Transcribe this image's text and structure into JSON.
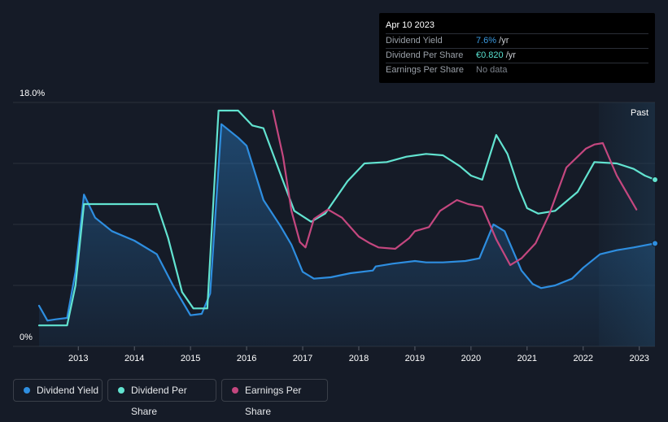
{
  "tooltip": {
    "date": "Apr 10 2023",
    "rows": [
      {
        "label": "Dividend Yield",
        "value": "7.6%",
        "unit": " /yr",
        "color": "#3b9ae1"
      },
      {
        "label": "Dividend Per Share",
        "value": "€0.820",
        "unit": " /yr",
        "color": "#59e1d0"
      },
      {
        "label": "Earnings Per Share",
        "value": "No data",
        "unit": "",
        "color": "#7c828b"
      }
    ]
  },
  "past_label": "Past",
  "legend": [
    {
      "label": "Dividend Yield",
      "color": "#2e8ee0"
    },
    {
      "label": "Dividend Per Share",
      "color": "#62e3d0"
    },
    {
      "label": "Earnings Per Share",
      "color": "#c4477f"
    }
  ],
  "chart_data": {
    "type": "line",
    "title": "",
    "xlabel": "",
    "ylabel": "",
    "ylim": [
      0,
      18
    ],
    "y_tick_labels": [
      "18.0%",
      "0%"
    ],
    "x_range": [
      2012.3,
      2023.28
    ],
    "x_ticks": [
      2013,
      2014,
      2015,
      2016,
      2017,
      2018,
      2019,
      2020,
      2021,
      2022,
      2023
    ],
    "forecast_region_start": 2022.28,
    "series": [
      {
        "name": "Dividend Yield",
        "color": "#2e8ee0",
        "area": true,
        "points": [
          [
            2012.3,
            3.0
          ],
          [
            2012.45,
            1.9
          ],
          [
            2012.6,
            2.0
          ],
          [
            2012.8,
            2.1
          ],
          [
            2012.95,
            5.5
          ],
          [
            2013.1,
            11.2
          ],
          [
            2013.3,
            9.5
          ],
          [
            2013.6,
            8.5
          ],
          [
            2014.0,
            7.8
          ],
          [
            2014.4,
            6.8
          ],
          [
            2014.7,
            4.4
          ],
          [
            2015.0,
            2.3
          ],
          [
            2015.2,
            2.4
          ],
          [
            2015.35,
            3.9
          ],
          [
            2015.55,
            16.4
          ],
          [
            2015.85,
            15.4
          ],
          [
            2016.0,
            14.8
          ],
          [
            2016.3,
            10.8
          ],
          [
            2016.6,
            8.9
          ],
          [
            2016.8,
            7.5
          ],
          [
            2017.0,
            5.5
          ],
          [
            2017.2,
            5.0
          ],
          [
            2017.5,
            5.1
          ],
          [
            2017.85,
            5.4
          ],
          [
            2018.25,
            5.6
          ],
          [
            2018.3,
            5.9
          ],
          [
            2018.6,
            6.1
          ],
          [
            2019.0,
            6.3
          ],
          [
            2019.2,
            6.2
          ],
          [
            2019.5,
            6.2
          ],
          [
            2019.9,
            6.3
          ],
          [
            2020.15,
            6.5
          ],
          [
            2020.4,
            9.0
          ],
          [
            2020.6,
            8.5
          ],
          [
            2020.9,
            5.6
          ],
          [
            2021.1,
            4.6
          ],
          [
            2021.25,
            4.3
          ],
          [
            2021.5,
            4.5
          ],
          [
            2021.8,
            5.0
          ],
          [
            2022.0,
            5.8
          ],
          [
            2022.3,
            6.8
          ],
          [
            2022.6,
            7.1
          ],
          [
            2022.9,
            7.3
          ],
          [
            2023.28,
            7.6
          ]
        ]
      },
      {
        "name": "Dividend Per Share",
        "color": "#62e3d0",
        "area": false,
        "points": [
          [
            2012.3,
            1.55
          ],
          [
            2012.8,
            1.55
          ],
          [
            2012.95,
            4.5
          ],
          [
            2013.1,
            10.5
          ],
          [
            2013.5,
            10.5
          ],
          [
            2014.0,
            10.5
          ],
          [
            2014.4,
            10.5
          ],
          [
            2014.6,
            8.0
          ],
          [
            2014.85,
            4.0
          ],
          [
            2015.05,
            2.8
          ],
          [
            2015.3,
            2.8
          ],
          [
            2015.5,
            17.4
          ],
          [
            2015.85,
            17.4
          ],
          [
            2016.1,
            16.3
          ],
          [
            2016.3,
            16.1
          ],
          [
            2016.65,
            12.2
          ],
          [
            2016.85,
            10.0
          ],
          [
            2017.15,
            9.2
          ],
          [
            2017.4,
            9.8
          ],
          [
            2017.8,
            12.2
          ],
          [
            2018.1,
            13.5
          ],
          [
            2018.5,
            13.6
          ],
          [
            2018.85,
            14.0
          ],
          [
            2019.2,
            14.2
          ],
          [
            2019.5,
            14.1
          ],
          [
            2019.8,
            13.3
          ],
          [
            2020.0,
            12.6
          ],
          [
            2020.2,
            12.3
          ],
          [
            2020.45,
            15.6
          ],
          [
            2020.65,
            14.2
          ],
          [
            2020.85,
            11.7
          ],
          [
            2021.0,
            10.2
          ],
          [
            2021.2,
            9.8
          ],
          [
            2021.5,
            10.0
          ],
          [
            2021.9,
            11.4
          ],
          [
            2022.2,
            13.6
          ],
          [
            2022.6,
            13.5
          ],
          [
            2022.9,
            13.1
          ],
          [
            2023.1,
            12.6
          ],
          [
            2023.28,
            12.3
          ]
        ]
      },
      {
        "name": "Earnings Per Share",
        "color": "#c4477f",
        "area": false,
        "points": [
          [
            2016.47,
            17.4
          ],
          [
            2016.65,
            14.0
          ],
          [
            2016.8,
            10.0
          ],
          [
            2016.95,
            7.7
          ],
          [
            2017.05,
            7.3
          ],
          [
            2017.2,
            9.4
          ],
          [
            2017.45,
            10.1
          ],
          [
            2017.7,
            9.5
          ],
          [
            2018.0,
            8.1
          ],
          [
            2018.2,
            7.6
          ],
          [
            2018.35,
            7.3
          ],
          [
            2018.65,
            7.2
          ],
          [
            2018.9,
            8.0
          ],
          [
            2019.0,
            8.5
          ],
          [
            2019.25,
            8.8
          ],
          [
            2019.45,
            10.0
          ],
          [
            2019.75,
            10.8
          ],
          [
            2019.95,
            10.5
          ],
          [
            2020.2,
            10.3
          ],
          [
            2020.45,
            7.9
          ],
          [
            2020.7,
            6.0
          ],
          [
            2020.9,
            6.5
          ],
          [
            2021.15,
            7.6
          ],
          [
            2021.4,
            9.8
          ],
          [
            2021.7,
            13.2
          ],
          [
            2022.05,
            14.6
          ],
          [
            2022.2,
            14.9
          ],
          [
            2022.35,
            15.0
          ],
          [
            2022.6,
            12.6
          ],
          [
            2022.95,
            10.1
          ]
        ]
      }
    ]
  }
}
